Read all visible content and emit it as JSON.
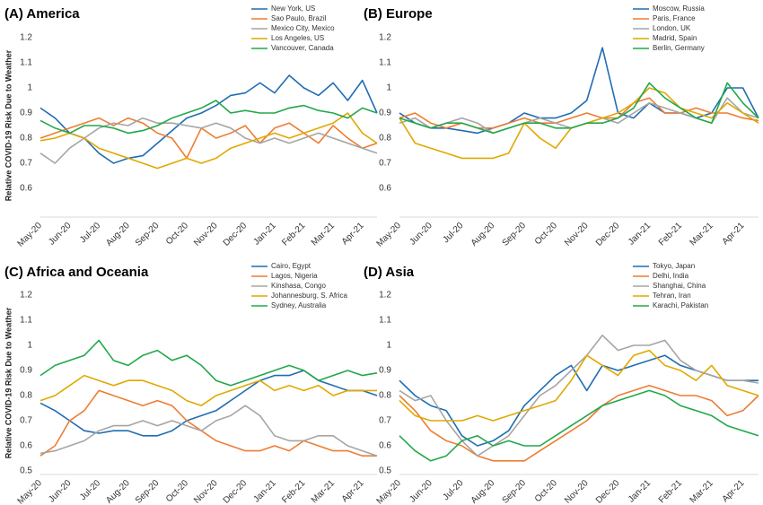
{
  "chart_data": [
    {
      "type": "line",
      "title": "(A) America",
      "y_label": "Relative COVID-19 Risk Due to Weather",
      "legend": "upper right",
      "categories": [
        "May-20",
        null,
        "Jun-20",
        null,
        "Jul-20",
        null,
        "Aug-20",
        null,
        "Sep-20",
        null,
        "Oct-20",
        null,
        "Nov-20",
        null,
        "Dec-20",
        null,
        "Jan-21",
        null,
        "Feb-21",
        null,
        "Mar-21",
        null,
        "Apr-21",
        null
      ],
      "ylim": [
        0.5,
        1.2
      ],
      "yticks": [
        0.6,
        0.7,
        0.8,
        0.9,
        1,
        1.1,
        1.2
      ],
      "series": [
        {
          "name": "New York, US",
          "color": "#1f6db3",
          "values": [
            0.92,
            0.88,
            0.82,
            0.8,
            0.74,
            0.7,
            0.72,
            0.73,
            0.78,
            0.83,
            0.88,
            0.9,
            0.93,
            0.97,
            0.98,
            1.02,
            0.98,
            1.05,
            1.0,
            0.97,
            1.02,
            0.95,
            1.03,
            0.9
          ]
        },
        {
          "name": "Sao Paulo, Brazil",
          "color": "#ed7d31",
          "values": [
            0.8,
            0.82,
            0.84,
            0.86,
            0.88,
            0.85,
            0.88,
            0.86,
            0.82,
            0.8,
            0.72,
            0.84,
            0.8,
            0.82,
            0.85,
            0.78,
            0.84,
            0.86,
            0.82,
            0.78,
            0.85,
            0.8,
            0.76,
            0.78
          ]
        },
        {
          "name": "Mexico City, Mexico",
          "color": "#a5a5a5",
          "values": [
            0.74,
            0.7,
            0.76,
            0.8,
            0.84,
            0.86,
            0.85,
            0.88,
            0.86,
            0.86,
            0.85,
            0.84,
            0.86,
            0.84,
            0.8,
            0.78,
            0.8,
            0.78,
            0.8,
            0.82,
            0.8,
            0.78,
            0.76,
            0.74
          ]
        },
        {
          "name": "Los Angeles, US",
          "color": "#e0a800",
          "values": [
            0.79,
            0.8,
            0.82,
            0.8,
            0.76,
            0.74,
            0.72,
            0.7,
            0.68,
            0.7,
            0.72,
            0.7,
            0.72,
            0.76,
            0.78,
            0.8,
            0.82,
            0.8,
            0.82,
            0.84,
            0.86,
            0.9,
            0.82,
            0.78
          ]
        },
        {
          "name": "Vancouver, Canada",
          "color": "#22a84a",
          "values": [
            0.87,
            0.84,
            0.82,
            0.85,
            0.85,
            0.84,
            0.82,
            0.83,
            0.85,
            0.88,
            0.9,
            0.92,
            0.95,
            0.9,
            0.91,
            0.9,
            0.9,
            0.92,
            0.93,
            0.91,
            0.9,
            0.88,
            0.92,
            0.9
          ]
        }
      ]
    },
    {
      "type": "line",
      "title": "(B) Europe",
      "legend": "upper right",
      "categories": [
        "May-20",
        null,
        "Jun-20",
        null,
        "Jul-20",
        null,
        "Aug-20",
        null,
        "Sep-20",
        null,
        "Oct-20",
        null,
        "Nov-20",
        null,
        "Dec-20",
        null,
        "Jan-21",
        null,
        "Feb-21",
        null,
        "Mar-21",
        null,
        "Apr-21",
        null
      ],
      "ylim": [
        0.5,
        1.2
      ],
      "yticks": [
        0.6,
        0.7,
        0.8,
        0.9,
        1,
        1.1,
        1.2
      ],
      "series": [
        {
          "name": "Moscow, Russia",
          "color": "#1f6db3",
          "values": [
            0.9,
            0.86,
            0.84,
            0.84,
            0.83,
            0.82,
            0.84,
            0.86,
            0.9,
            0.88,
            0.88,
            0.9,
            0.95,
            1.16,
            0.9,
            0.88,
            0.94,
            0.9,
            0.9,
            0.88,
            0.9,
            1.0,
            1.0,
            0.88
          ]
        },
        {
          "name": "Paris, France",
          "color": "#ed7d31",
          "values": [
            0.88,
            0.9,
            0.86,
            0.84,
            0.86,
            0.84,
            0.84,
            0.86,
            0.88,
            0.86,
            0.86,
            0.88,
            0.9,
            0.88,
            0.88,
            0.94,
            0.96,
            0.9,
            0.9,
            0.92,
            0.9,
            0.9,
            0.88,
            0.87
          ]
        },
        {
          "name": "London, UK",
          "color": "#a5a5a5",
          "values": [
            0.86,
            0.88,
            0.84,
            0.86,
            0.88,
            0.86,
            0.82,
            0.84,
            0.86,
            0.88,
            0.86,
            0.84,
            0.86,
            0.88,
            0.86,
            0.9,
            0.94,
            0.92,
            0.9,
            0.88,
            0.86,
            0.96,
            0.9,
            0.88
          ]
        },
        {
          "name": "Madrid, Spain",
          "color": "#e0a800",
          "values": [
            0.88,
            0.78,
            0.76,
            0.74,
            0.72,
            0.72,
            0.72,
            0.74,
            0.86,
            0.8,
            0.76,
            0.84,
            0.86,
            0.88,
            0.9,
            0.94,
            1.0,
            0.98,
            0.92,
            0.9,
            0.88,
            0.94,
            0.9,
            0.86
          ]
        },
        {
          "name": "Berlin, Germany",
          "color": "#22a84a",
          "values": [
            0.88,
            0.86,
            0.84,
            0.86,
            0.86,
            0.84,
            0.82,
            0.84,
            0.86,
            0.86,
            0.84,
            0.84,
            0.86,
            0.86,
            0.88,
            0.92,
            1.02,
            0.96,
            0.92,
            0.88,
            0.86,
            1.02,
            0.94,
            0.88
          ]
        }
      ]
    },
    {
      "type": "line",
      "title": "(C) Africa and Oceania",
      "y_label": "Relative COVID-19 Risk Due to Weather",
      "legend": "upper right",
      "categories": [
        "May-20",
        null,
        "Jun-20",
        null,
        "Jul-20",
        null,
        "Aug-20",
        null,
        "Sep-20",
        null,
        "Oct-20",
        null,
        "Nov-20",
        null,
        "Dec-20",
        null,
        "Jan-21",
        null,
        "Feb-21",
        null,
        "Mar-21",
        null,
        "Apr-21",
        null
      ],
      "ylim": [
        0.5,
        1.2
      ],
      "yticks": [
        0.5,
        0.6,
        0.7,
        0.8,
        0.9,
        1,
        1.1,
        1.2
      ],
      "series": [
        {
          "name": "Cairo, Egypt",
          "color": "#1f6db3",
          "values": [
            0.77,
            0.74,
            0.7,
            0.66,
            0.65,
            0.66,
            0.66,
            0.64,
            0.64,
            0.66,
            0.7,
            0.72,
            0.74,
            0.78,
            0.82,
            0.86,
            0.88,
            0.88,
            0.9,
            0.86,
            0.84,
            0.82,
            0.82,
            0.8
          ]
        },
        {
          "name": "Lagos, Nigeria",
          "color": "#ed7d31",
          "values": [
            0.56,
            0.6,
            0.7,
            0.74,
            0.82,
            0.8,
            0.78,
            0.76,
            0.78,
            0.76,
            0.7,
            0.66,
            0.62,
            0.6,
            0.58,
            0.58,
            0.6,
            0.58,
            0.62,
            0.6,
            0.58,
            0.58,
            0.56,
            0.56
          ]
        },
        {
          "name": "Kinshasa, Congo",
          "color": "#a5a5a5",
          "values": [
            0.57,
            0.58,
            0.6,
            0.62,
            0.66,
            0.68,
            0.68,
            0.7,
            0.68,
            0.7,
            0.68,
            0.66,
            0.7,
            0.72,
            0.76,
            0.72,
            0.64,
            0.62,
            0.62,
            0.64,
            0.64,
            0.6,
            0.58,
            0.56
          ]
        },
        {
          "name": "Johannesburg, S. Africa",
          "color": "#e0a800",
          "values": [
            0.78,
            0.8,
            0.84,
            0.88,
            0.86,
            0.84,
            0.86,
            0.86,
            0.84,
            0.82,
            0.78,
            0.76,
            0.8,
            0.82,
            0.84,
            0.86,
            0.82,
            0.84,
            0.82,
            0.84,
            0.8,
            0.82,
            0.82,
            0.82
          ]
        },
        {
          "name": "Sydney, Australia",
          "color": "#22a84a",
          "values": [
            0.88,
            0.92,
            0.94,
            0.96,
            1.02,
            0.94,
            0.92,
            0.96,
            0.98,
            0.94,
            0.96,
            0.92,
            0.86,
            0.84,
            0.86,
            0.88,
            0.9,
            0.92,
            0.9,
            0.86,
            0.88,
            0.9,
            0.88,
            0.89
          ]
        }
      ]
    },
    {
      "type": "line",
      "title": "(D) Asia",
      "legend": "upper right",
      "categories": [
        "May-20",
        null,
        "Jun-20",
        null,
        "Jul-20",
        null,
        "Aug-20",
        null,
        "Sep-20",
        null,
        "Oct-20",
        null,
        "Nov-20",
        null,
        "Dec-20",
        null,
        "Jan-21",
        null,
        "Feb-21",
        null,
        "Mar-21",
        null,
        "Apr-21",
        null
      ],
      "ylim": [
        0.5,
        1.2
      ],
      "yticks": [
        0.5,
        0.6,
        0.7,
        0.8,
        0.9,
        1,
        1.1,
        1.2
      ],
      "series": [
        {
          "name": "Tokyo, Japan",
          "color": "#1f6db3",
          "values": [
            0.86,
            0.8,
            0.76,
            0.74,
            0.64,
            0.6,
            0.62,
            0.66,
            0.76,
            0.82,
            0.88,
            0.92,
            0.82,
            0.92,
            0.9,
            0.92,
            0.94,
            0.96,
            0.92,
            0.9,
            0.88,
            0.86,
            0.86,
            0.86
          ]
        },
        {
          "name": "Delhi, India",
          "color": "#ed7d31",
          "values": [
            0.8,
            0.74,
            0.66,
            0.62,
            0.6,
            0.56,
            0.54,
            0.54,
            0.54,
            0.58,
            0.62,
            0.66,
            0.7,
            0.76,
            0.8,
            0.82,
            0.84,
            0.82,
            0.8,
            0.8,
            0.78,
            0.72,
            0.74,
            0.8
          ]
        },
        {
          "name": "Shanghai, China",
          "color": "#a5a5a5",
          "values": [
            0.82,
            0.78,
            0.8,
            0.7,
            0.62,
            0.56,
            0.6,
            0.64,
            0.72,
            0.8,
            0.84,
            0.9,
            0.96,
            1.04,
            0.98,
            1.0,
            1.0,
            1.02,
            0.94,
            0.9,
            0.88,
            0.86,
            0.86,
            0.85
          ]
        },
        {
          "name": "Tehran, Iran",
          "color": "#e0a800",
          "values": [
            0.78,
            0.72,
            0.7,
            0.7,
            0.7,
            0.72,
            0.7,
            0.72,
            0.74,
            0.76,
            0.78,
            0.86,
            0.96,
            0.92,
            0.88,
            0.96,
            0.98,
            0.92,
            0.9,
            0.86,
            0.92,
            0.84,
            0.82,
            0.8
          ]
        },
        {
          "name": "Karachi, Pakistan",
          "color": "#22a84a",
          "values": [
            0.64,
            0.58,
            0.54,
            0.56,
            0.62,
            0.64,
            0.6,
            0.62,
            0.6,
            0.6,
            0.64,
            0.68,
            0.72,
            0.76,
            0.78,
            0.8,
            0.82,
            0.8,
            0.76,
            0.74,
            0.72,
            0.68,
            0.66,
            0.64
          ]
        }
      ]
    }
  ]
}
